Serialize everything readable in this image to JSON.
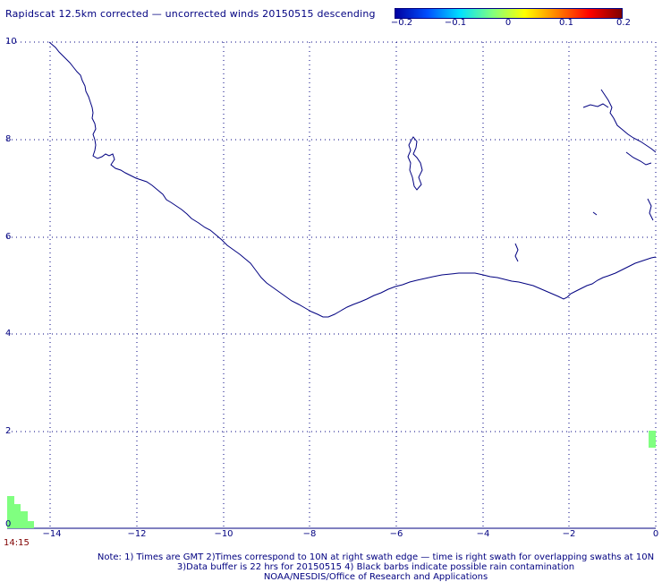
{
  "title": "Rapidscat 12.5km corrected — uncorrected winds 20150515 descending",
  "colorbar": {
    "ticks": [
      "−0.2",
      "−0.1",
      "0",
      "0.1",
      "0.2"
    ],
    "colors": [
      "#0000a0",
      "#0050ff",
      "#00e0ff",
      "#80ff80",
      "#ffff00",
      "#ff8000",
      "#ff0000",
      "#800000"
    ]
  },
  "axes": {
    "y_ticks": [
      "10",
      "8",
      "6",
      "4",
      "2",
      "0"
    ],
    "x_ticks": [
      "−14",
      "−12",
      "−10",
      "−8",
      "−6",
      "−4",
      "−2",
      "0"
    ],
    "xlim": [
      -14,
      0
    ],
    "ylim": [
      0,
      10
    ],
    "grid": true
  },
  "time_label": "14:15",
  "notes": {
    "line1": "Note: 1) Times are GMT 2)Times correspond to 10N at right swath edge — time is right swath for overlapping swaths at 10N",
    "line2": "3)Data buffer is 22 hrs for 20150515 4) Black barbs indicate possible rain contamination",
    "line3": "NOAA/NESDIS/Office of Research and Applications"
  },
  "colors": {
    "coast": "#000080",
    "swath": "#80ff80",
    "time": "#800000"
  }
}
